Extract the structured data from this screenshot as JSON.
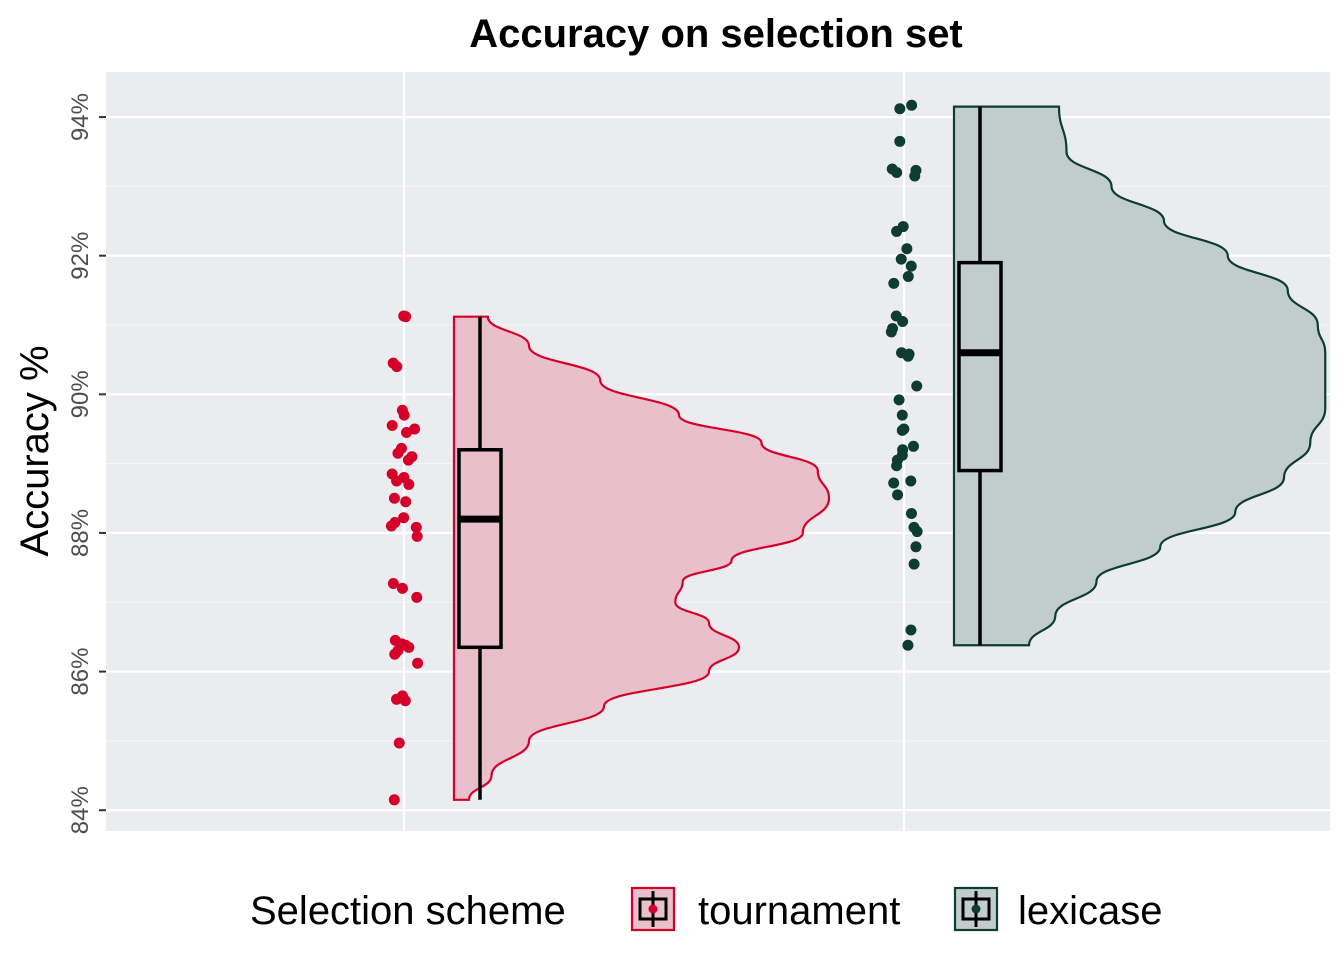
{
  "chart_data": {
    "type": "raincloud",
    "title": "Accuracy on selection set",
    "ylabel": "Accuracy %",
    "xlabel": "",
    "ylim": [
      83.7,
      94.65
    ],
    "yticks": [
      84,
      86,
      88,
      90,
      92,
      94
    ],
    "ytick_labels": [
      "84%",
      "86%",
      "88%",
      "90%",
      "92%",
      "94%"
    ],
    "grid": true,
    "legend": {
      "title": "Selection scheme",
      "position": "bottom",
      "entries": [
        "tournament",
        "lexicase"
      ]
    },
    "series": [
      {
        "name": "tournament",
        "color": "#D5002A",
        "fill": "#E9BFCB",
        "box": {
          "min": 84.15,
          "q1": 86.35,
          "median": 88.2,
          "q3": 89.2,
          "max": 91.12
        },
        "density": [
          [
            84.15,
            0.04
          ],
          [
            84.5,
            0.1
          ],
          [
            85.0,
            0.2
          ],
          [
            85.5,
            0.4
          ],
          [
            86.0,
            0.68
          ],
          [
            86.35,
            0.76
          ],
          [
            86.7,
            0.68
          ],
          [
            87.0,
            0.59
          ],
          [
            87.3,
            0.61
          ],
          [
            87.6,
            0.74
          ],
          [
            88.0,
            0.93
          ],
          [
            88.5,
            1.0
          ],
          [
            88.9,
            0.97
          ],
          [
            89.3,
            0.82
          ],
          [
            89.7,
            0.6
          ],
          [
            90.2,
            0.39
          ],
          [
            90.7,
            0.2
          ],
          [
            91.12,
            0.09
          ]
        ],
        "points": [
          91.13,
          91.12,
          90.45,
          90.4,
          89.77,
          89.7,
          89.55,
          89.5,
          89.45,
          89.22,
          89.15,
          89.1,
          89.05,
          88.85,
          88.8,
          88.75,
          88.7,
          88.5,
          88.45,
          88.22,
          88.15,
          88.1,
          88.08,
          87.95,
          87.27,
          87.2,
          87.07,
          86.45,
          86.4,
          86.38,
          86.35,
          86.3,
          86.25,
          86.12,
          85.65,
          85.6,
          85.58,
          84.97,
          84.15
        ]
      },
      {
        "name": "lexicase",
        "color": "#0E3C2F",
        "fill": "#C1CDCC",
        "box": {
          "min": 86.38,
          "q1": 88.9,
          "median": 90.6,
          "q3": 91.9,
          "max": 94.15
        },
        "density": [
          [
            86.38,
            0.2
          ],
          [
            86.8,
            0.27
          ],
          [
            87.3,
            0.38
          ],
          [
            87.8,
            0.55
          ],
          [
            88.3,
            0.75
          ],
          [
            88.8,
            0.88
          ],
          [
            89.3,
            0.95
          ],
          [
            89.8,
            0.99
          ],
          [
            90.2,
            0.99
          ],
          [
            90.6,
            0.99
          ],
          [
            91.0,
            0.97
          ],
          [
            91.5,
            0.89
          ],
          [
            92.0,
            0.73
          ],
          [
            92.5,
            0.56
          ],
          [
            93.0,
            0.42
          ],
          [
            93.5,
            0.3
          ],
          [
            94.15,
            0.28
          ]
        ],
        "points": [
          94.17,
          94.12,
          93.65,
          93.25,
          93.23,
          93.2,
          93.15,
          92.42,
          92.35,
          92.1,
          91.95,
          91.85,
          91.7,
          91.6,
          91.13,
          91.05,
          90.95,
          90.9,
          90.6,
          90.58,
          90.55,
          90.12,
          89.92,
          89.7,
          89.5,
          89.48,
          89.25,
          89.2,
          89.12,
          89.05,
          88.97,
          88.75,
          88.72,
          88.55,
          88.28,
          88.08,
          88.02,
          87.8,
          87.55,
          86.6,
          86.38
        ]
      }
    ]
  }
}
